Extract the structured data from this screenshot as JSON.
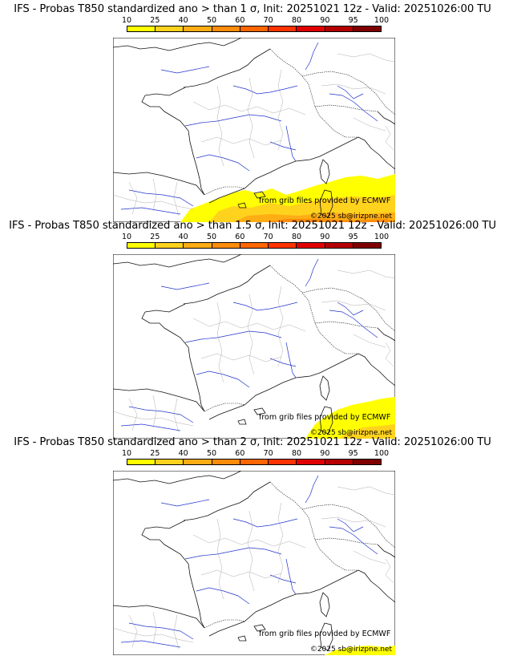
{
  "colorbar": {
    "ticks": [
      "10",
      "25",
      "40",
      "50",
      "60",
      "70",
      "80",
      "90",
      "95",
      "100"
    ],
    "colors": [
      "#ffff00",
      "#ffd21e",
      "#ffad14",
      "#ff8c0a",
      "#ff6600",
      "#ff3300",
      "#e00000",
      "#b40000",
      "#800000"
    ]
  },
  "credit": "from grib files provided by ECMWF",
  "copyright": "©2025 sb@irizpne.net",
  "panels": [
    {
      "title": "IFS - Probas T850  standardized ano > than 1 σ, Init: 20251021 12z - Valid: 20251026:00 TU"
    },
    {
      "title": "IFS - Probas T850  standardized ano > than 1.5 σ, Init: 20251021 12z - Valid: 20251026:00 TU"
    },
    {
      "title": "IFS - Probas T850  standardized ano > than 2 σ, Init: 20251021 12z - Valid: 20251026:00 TU"
    }
  ]
}
